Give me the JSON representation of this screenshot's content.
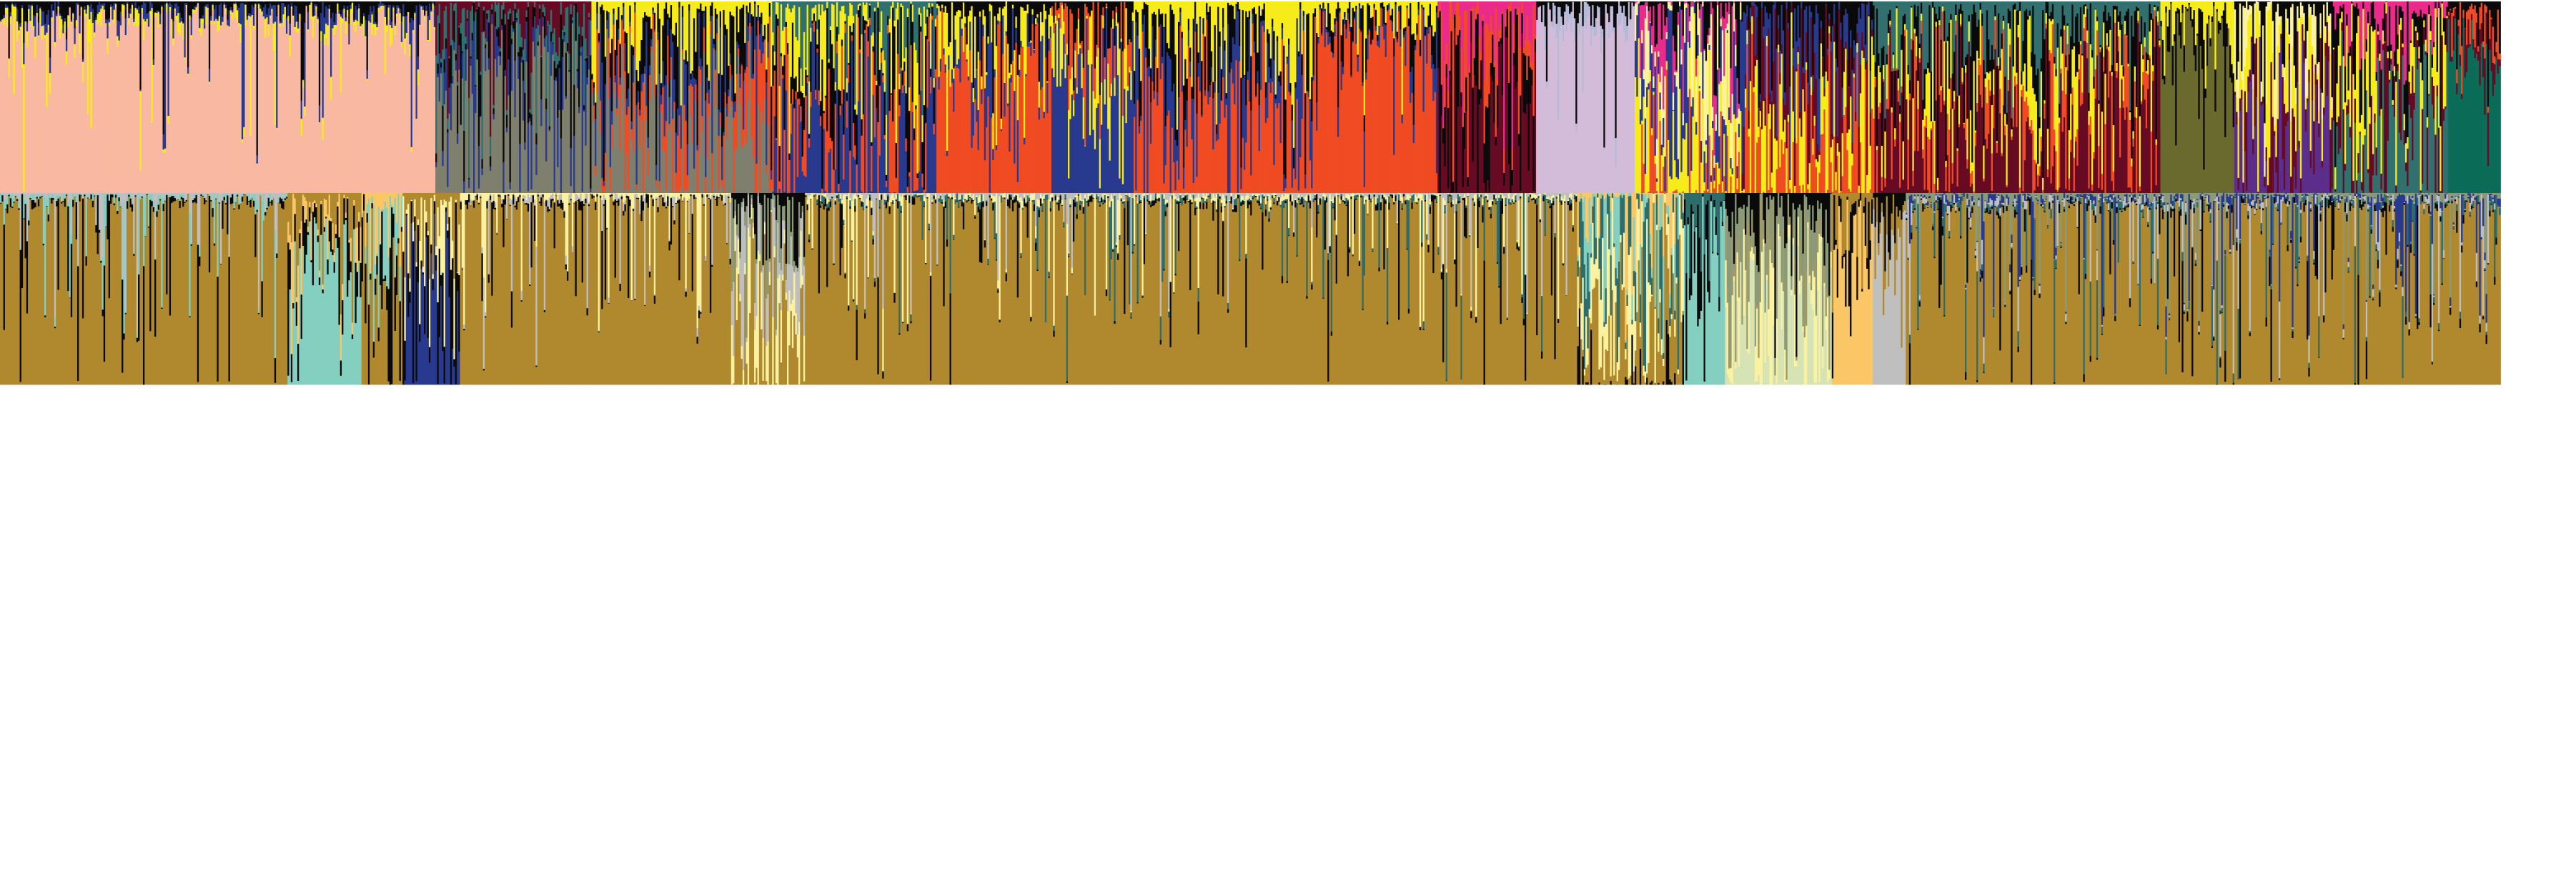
{
  "chart_data": [
    {
      "type": "stacked_bar",
      "title": "",
      "xlabel": "",
      "ylabel": "",
      "ylim": [
        0,
        1
      ],
      "grid": false,
      "legend": "none",
      "n_components": 16,
      "palette": [
        "#F9B8A1",
        "#F04B23",
        "#7F7F6E",
        "#293A8E",
        "#F7EC1B",
        "#670A23",
        "#0A0A0A",
        "#D3BCDA",
        "#6B6A2E",
        "#5C2E8C",
        "#32706F",
        "#0B6C58",
        "#EA2B8B",
        "#FAF2A0",
        "#B4BBD9",
        "#2F6C6C"
      ],
      "regions": [
        {
          "end": 265,
          "dom": 0,
          "mix": [
            4,
            3,
            6
          ],
          "alt": 0.12,
          "spikes": 0.08
        },
        {
          "end": 360,
          "dom": 2,
          "mix": [
            3,
            6,
            10,
            5
          ],
          "alt": 0.3,
          "spikes": 0.14
        },
        {
          "end": 470,
          "dom": 2,
          "mix": [
            1,
            3,
            6,
            4
          ],
          "alt": 0.45,
          "spikes": 0.1
        },
        {
          "end": 570,
          "dom": 3,
          "mix": [
            1,
            6,
            4,
            10
          ],
          "alt": 0.45,
          "spikes": 0.2
        },
        {
          "end": 640,
          "dom": 1,
          "mix": [
            3,
            4,
            6
          ],
          "alt": 0.4,
          "spikes": 0.1
        },
        {
          "end": 690,
          "dom": 3,
          "mix": [
            4,
            1,
            6
          ],
          "alt": 0.35,
          "spikes": 0.15
        },
        {
          "end": 800,
          "dom": 1,
          "mix": [
            3,
            6,
            4
          ],
          "alt": 0.45,
          "spikes": 0.15
        },
        {
          "end": 875,
          "dom": 1,
          "mix": [
            3,
            6,
            4
          ],
          "alt": 0.2,
          "spikes": 0.1
        },
        {
          "end": 935,
          "dom": 5,
          "mix": [
            6,
            1,
            12
          ],
          "alt": 0.45,
          "spikes": 0.25
        },
        {
          "end": 995,
          "dom": 7,
          "mix": [
            14,
            6
          ],
          "alt": 0.15,
          "spikes": 0.1
        },
        {
          "end": 1060,
          "dom": 1,
          "mix": [
            4,
            3,
            13,
            12,
            6
          ],
          "alt": 0.55,
          "spikes": 0.2
        },
        {
          "end": 1140,
          "dom": 1,
          "mix": [
            4,
            5,
            3,
            6
          ],
          "alt": 0.5,
          "spikes": 0.2
        },
        {
          "end": 1315,
          "dom": 5,
          "mix": [
            1,
            4,
            6,
            10
          ],
          "alt": 0.4,
          "spikes": 0.15
        },
        {
          "end": 1360,
          "dom": 8,
          "mix": [
            6,
            4
          ],
          "alt": 0.25,
          "spikes": 0.15
        },
        {
          "end": 1420,
          "dom": 9,
          "mix": [
            5,
            4,
            13,
            6
          ],
          "alt": 0.45,
          "spikes": 0.15
        },
        {
          "end": 1490,
          "dom": 10,
          "mix": [
            5,
            4,
            6,
            12
          ],
          "alt": 0.45,
          "spikes": 0.2
        },
        {
          "end": 1522,
          "dom": 11,
          "mix": [
            5,
            1,
            6
          ],
          "alt": 0.3,
          "spikes": 0.1
        }
      ]
    },
    {
      "type": "stacked_bar",
      "title": "",
      "xlabel": "",
      "ylabel": "",
      "ylim": [
        0,
        1
      ],
      "grid": false,
      "legend": "none",
      "n_components": 11,
      "palette": [
        "#B0892F",
        "#84CFC0",
        "#0A0A0A",
        "#FAF2A0",
        "#FBC766",
        "#BFBFBF",
        "#2F6C6C",
        "#293A8E",
        "#D6E3B4",
        "#8A9A78",
        "#9E9A6A"
      ],
      "regions": [
        {
          "end": 175,
          "dom": 0,
          "mix": [
            2,
            1,
            5
          ],
          "alt": 0.05,
          "spikes": 0.15
        },
        {
          "end": 220,
          "dom": 1,
          "mix": [
            2,
            4,
            0
          ],
          "alt": 0.25,
          "spikes": 0.2
        },
        {
          "end": 245,
          "dom": 0,
          "mix": [
            2,
            1,
            4
          ],
          "alt": 0.45,
          "spikes": 0.2
        },
        {
          "end": 280,
          "dom": 7,
          "mix": [
            2,
            3,
            0
          ],
          "alt": 0.5,
          "spikes": 0.2
        },
        {
          "end": 445,
          "dom": 0,
          "mix": [
            2,
            5,
            3
          ],
          "alt": 0.05,
          "spikes": 0.12
        },
        {
          "end": 490,
          "dom": 0,
          "mix": [
            3,
            5,
            9,
            2
          ],
          "alt": 0.4,
          "spikes": 0.15
        },
        {
          "end": 960,
          "dom": 0,
          "mix": [
            2,
            6,
            3,
            5
          ],
          "alt": 0.04,
          "spikes": 0.12
        },
        {
          "end": 1025,
          "dom": 2,
          "mix": [
            0,
            3,
            6,
            1,
            4
          ],
          "alt": 0.55,
          "spikes": 0.3
        },
        {
          "end": 1050,
          "dom": 1,
          "mix": [
            2,
            6
          ],
          "alt": 0.3,
          "spikes": 0.2
        },
        {
          "end": 1115,
          "dom": 8,
          "mix": [
            3,
            10,
            9,
            2
          ],
          "alt": 0.45,
          "spikes": 0.2
        },
        {
          "end": 1140,
          "dom": 4,
          "mix": [
            2,
            0
          ],
          "alt": 0.35,
          "spikes": 0.15
        },
        {
          "end": 1160,
          "dom": 5,
          "mix": [
            0,
            2
          ],
          "alt": 0.35,
          "spikes": 0.15
        },
        {
          "end": 1522,
          "dom": 0,
          "mix": [
            2,
            6,
            5,
            7,
            9
          ],
          "alt": 0.05,
          "spikes": 0.12
        }
      ]
    }
  ]
}
